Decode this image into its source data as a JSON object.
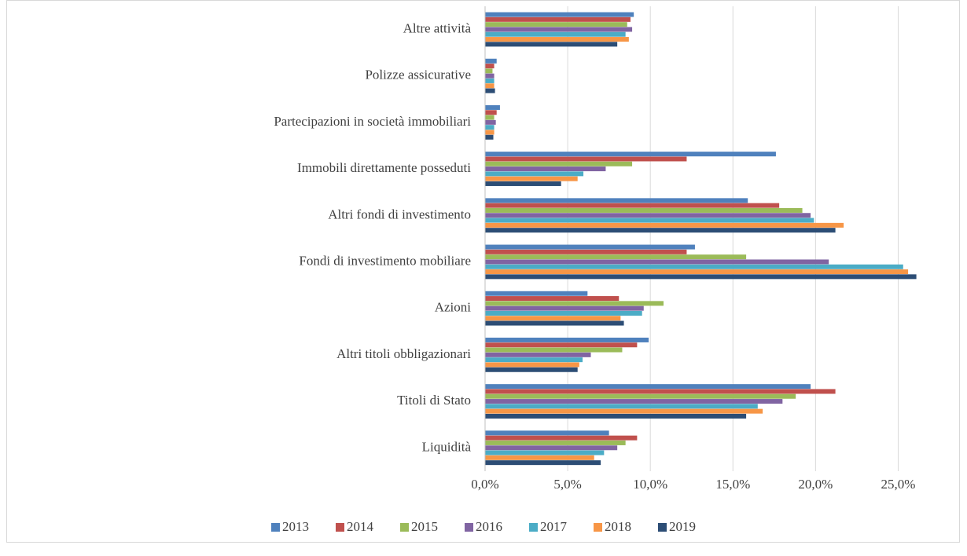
{
  "chart_data": {
    "type": "hbar",
    "categories": [
      "Altre attività",
      "Polizze assicurative",
      "Partecipazioni in società immobiliari",
      "Immobili direttamente posseduti",
      "Altri fondi di investimento",
      "Fondi di investimento mobiliare",
      "Azioni",
      "Altri titoli obbligazionari",
      "Titoli di Stato",
      "Liquidità"
    ],
    "series": [
      {
        "name": "2013",
        "color": "#4f81bd",
        "values": [
          9.0,
          0.7,
          0.9,
          17.6,
          15.9,
          12.7,
          6.2,
          9.9,
          19.7,
          7.5
        ]
      },
      {
        "name": "2014",
        "color": "#c0504d",
        "values": [
          8.8,
          0.55,
          0.7,
          12.2,
          17.8,
          12.2,
          8.1,
          9.2,
          21.2,
          9.2
        ]
      },
      {
        "name": "2015",
        "color": "#9bbb59",
        "values": [
          8.6,
          0.45,
          0.55,
          8.9,
          19.2,
          15.8,
          10.8,
          8.3,
          18.8,
          8.5
        ]
      },
      {
        "name": "2016",
        "color": "#8064a2",
        "values": [
          8.9,
          0.55,
          0.65,
          7.3,
          19.7,
          20.8,
          9.6,
          6.4,
          18.0,
          8.0
        ]
      },
      {
        "name": "2017",
        "color": "#4bacc6",
        "values": [
          8.5,
          0.55,
          0.55,
          5.95,
          19.9,
          25.3,
          9.5,
          5.9,
          16.5,
          7.2
        ]
      },
      {
        "name": "2018",
        "color": "#f79646",
        "values": [
          8.7,
          0.55,
          0.55,
          5.6,
          21.7,
          25.6,
          8.2,
          5.7,
          16.8,
          6.6
        ]
      },
      {
        "name": "2019",
        "color": "#2c4d75",
        "values": [
          8.0,
          0.6,
          0.5,
          4.6,
          21.2,
          26.1,
          8.4,
          5.6,
          15.8,
          7.0
        ]
      }
    ],
    "xlim": [
      0,
      26.5
    ],
    "xticks": [
      {
        "value": 0,
        "label": "0,0%"
      },
      {
        "value": 5,
        "label": "5,0%"
      },
      {
        "value": 10,
        "label": "10,0%"
      },
      {
        "value": 15,
        "label": "15,0%"
      },
      {
        "value": 20,
        "label": "20,0%"
      },
      {
        "value": 25,
        "label": "25,0%"
      }
    ],
    "grid": true,
    "legend": "bottom"
  }
}
